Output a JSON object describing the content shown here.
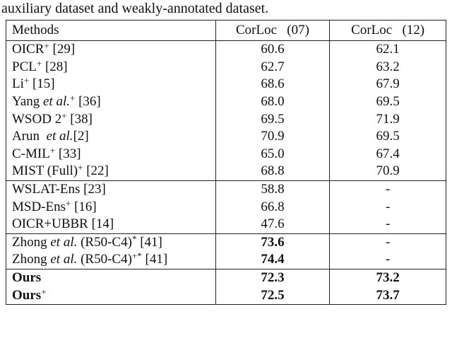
{
  "caption": "auxiliary dataset and weakly-annotated dataset.",
  "table": {
    "header": [
      "Methods",
      "CorLoc   (07)",
      "CorLoc   (12)"
    ],
    "groups": [
      {
        "rows": [
          {
            "method": [
              {
                "text": "OICR"
              },
              {
                "text": "+",
                "style": "sup"
              },
              {
                "text": " [29]"
              }
            ],
            "values": [
              {
                "text": "60.6"
              },
              {
                "text": "62.1"
              }
            ]
          },
          {
            "method": [
              {
                "text": "PCL"
              },
              {
                "text": "+",
                "style": "sup"
              },
              {
                "text": " [28]"
              }
            ],
            "values": [
              {
                "text": "62.7"
              },
              {
                "text": "63.2"
              }
            ]
          },
          {
            "method": [
              {
                "text": "Li"
              },
              {
                "text": "+",
                "style": "sup"
              },
              {
                "text": " [15]"
              }
            ],
            "values": [
              {
                "text": "68.6"
              },
              {
                "text": "67.9"
              }
            ]
          },
          {
            "method": [
              {
                "text": "Yang "
              },
              {
                "text": "et al.",
                "style": "italic"
              },
              {
                "text": "+",
                "style": "sup"
              },
              {
                "text": " [36]"
              }
            ],
            "values": [
              {
                "text": "68.0"
              },
              {
                "text": "69.5"
              }
            ]
          },
          {
            "method": [
              {
                "text": "WSOD 2"
              },
              {
                "text": "+",
                "style": "sup"
              },
              {
                "text": " [38]"
              }
            ],
            "values": [
              {
                "text": "69.5"
              },
              {
                "text": "71.9"
              }
            ]
          },
          {
            "method": [
              {
                "text": "Arun  "
              },
              {
                "text": "et al.",
                "style": "italic"
              },
              {
                "text": "[2]"
              }
            ],
            "values": [
              {
                "text": "70.9"
              },
              {
                "text": "69.5"
              }
            ]
          },
          {
            "method": [
              {
                "text": "C-MIL"
              },
              {
                "text": "+",
                "style": "sup"
              },
              {
                "text": " [33]"
              }
            ],
            "values": [
              {
                "text": "65.0"
              },
              {
                "text": "67.4"
              }
            ]
          },
          {
            "method": [
              {
                "text": "MIST (Full)"
              },
              {
                "text": "+",
                "style": "sup"
              },
              {
                "text": " [22]"
              }
            ],
            "values": [
              {
                "text": "68.8"
              },
              {
                "text": "70.9"
              }
            ]
          }
        ]
      },
      {
        "rows": [
          {
            "method": [
              {
                "text": "WSLAT-Ens [23]"
              }
            ],
            "values": [
              {
                "text": "58.8"
              },
              {
                "text": "-"
              }
            ]
          },
          {
            "method": [
              {
                "text": "MSD-Ens"
              },
              {
                "text": "+",
                "style": "sup"
              },
              {
                "text": " [16]"
              }
            ],
            "values": [
              {
                "text": "66.8"
              },
              {
                "text": "-"
              }
            ]
          },
          {
            "method": [
              {
                "text": "OICR+UBBR [14]"
              }
            ],
            "values": [
              {
                "text": "47.6"
              },
              {
                "text": "-"
              }
            ]
          }
        ]
      },
      {
        "rows": [
          {
            "method": [
              {
                "text": "Zhong "
              },
              {
                "text": "et al.",
                "style": "italic"
              },
              {
                "text": " (R50-C4)"
              },
              {
                "text": "*",
                "style": "sup"
              },
              {
                "text": " [41]"
              }
            ],
            "values": [
              {
                "text": "73.6",
                "style": "bold"
              },
              {
                "text": "-"
              }
            ]
          },
          {
            "method": [
              {
                "text": "Zhong "
              },
              {
                "text": "et al.",
                "style": "italic"
              },
              {
                "text": " (R50-C4)"
              },
              {
                "text": "+*",
                "style": "sup"
              },
              {
                "text": " [41]"
              }
            ],
            "values": [
              {
                "text": "74.4",
                "style": "bold"
              },
              {
                "text": "-"
              }
            ]
          }
        ]
      },
      {
        "rows": [
          {
            "method": [
              {
                "text": "Ours",
                "style": "bold"
              }
            ],
            "values": [
              {
                "text": "72.3",
                "style": "bold"
              },
              {
                "text": "73.2",
                "style": "bold"
              }
            ]
          },
          {
            "method": [
              {
                "text": "Ours",
                "style": "bold"
              },
              {
                "text": "+",
                "style": "sup"
              }
            ],
            "values": [
              {
                "text": "72.5",
                "style": "bold"
              },
              {
                "text": "73.7",
                "style": "bold"
              }
            ]
          }
        ]
      }
    ]
  }
}
